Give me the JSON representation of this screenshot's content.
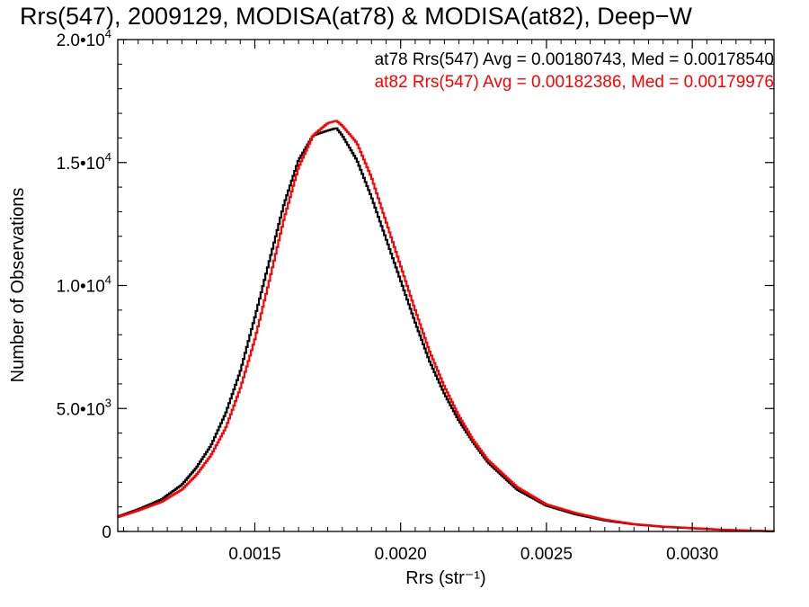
{
  "chart_data": {
    "type": "line",
    "title": "Rrs(547), 2009129, MODISA(at78) & MODISA(at82), Deep−W",
    "xlabel": "Rrs (str⁻¹)",
    "ylabel": "Number of Observations",
    "xlim": [
      0.00103,
      0.00328
    ],
    "ylim": [
      0,
      20000
    ],
    "grid": false,
    "legend_position": "top-right",
    "x_ticks": [
      {
        "value": 0.0015,
        "label": "0.0015"
      },
      {
        "value": 0.002,
        "label": "0.0020"
      },
      {
        "value": 0.0025,
        "label": "0.0025"
      },
      {
        "value": 0.003,
        "label": "0.0030"
      }
    ],
    "y_ticks": [
      {
        "value": 0,
        "mant": "0",
        "exp": ""
      },
      {
        "value": 5000,
        "mant": "5.0•10",
        "exp": "3"
      },
      {
        "value": 10000,
        "mant": "1.0•10",
        "exp": "4"
      },
      {
        "value": 15000,
        "mant": "1.5•10",
        "exp": "4"
      },
      {
        "value": 20000,
        "mant": "2.0•10",
        "exp": "4"
      }
    ],
    "annotations": [
      {
        "text": "at78 Rrs(547) Avg = 0.00180743, Med = 0.00178540",
        "color": "#000000"
      },
      {
        "text": "at82 Rrs(547) Avg = 0.00182386, Med = 0.00179976",
        "color": "#ff0000"
      }
    ],
    "series": [
      {
        "color": "#000000",
        "x": [
          0.00103,
          0.0011,
          0.00118,
          0.00125,
          0.0013,
          0.00135,
          0.0014,
          0.00145,
          0.0015,
          0.00155,
          0.0016,
          0.00165,
          0.0017,
          0.00175,
          0.00178,
          0.0018,
          0.00185,
          0.0019,
          0.00195,
          0.002,
          0.00205,
          0.0021,
          0.00215,
          0.0022,
          0.00225,
          0.0023,
          0.0024,
          0.0025,
          0.0026,
          0.0027,
          0.0028,
          0.0029,
          0.003,
          0.0031,
          0.0032,
          0.00328
        ],
        "y": [
          600,
          900,
          1300,
          1900,
          2600,
          3500,
          4800,
          6500,
          8700,
          11000,
          13300,
          15100,
          16100,
          16300,
          16400,
          16100,
          15100,
          13600,
          11900,
          10200,
          8500,
          6900,
          5600,
          4500,
          3600,
          2800,
          1700,
          1050,
          700,
          450,
          290,
          190,
          130,
          70,
          30,
          10
        ]
      },
      {
        "color": "#ff0000",
        "x": [
          0.00103,
          0.0011,
          0.00118,
          0.00125,
          0.0013,
          0.00135,
          0.0014,
          0.00145,
          0.0015,
          0.00155,
          0.0016,
          0.00165,
          0.0017,
          0.00175,
          0.00178,
          0.0018,
          0.00185,
          0.0019,
          0.00195,
          0.002,
          0.00205,
          0.0021,
          0.00215,
          0.0022,
          0.00225,
          0.0023,
          0.0024,
          0.0025,
          0.0026,
          0.0027,
          0.0028,
          0.0029,
          0.003,
          0.0031,
          0.0032,
          0.00328
        ],
        "y": [
          580,
          850,
          1200,
          1700,
          2300,
          3100,
          4200,
          5800,
          7800,
          10200,
          12700,
          14800,
          16100,
          16600,
          16700,
          16500,
          15800,
          14400,
          12600,
          10800,
          9000,
          7300,
          5900,
          4700,
          3700,
          2900,
          1800,
          1100,
          750,
          480,
          300,
          200,
          140,
          75,
          35,
          10
        ]
      }
    ]
  }
}
